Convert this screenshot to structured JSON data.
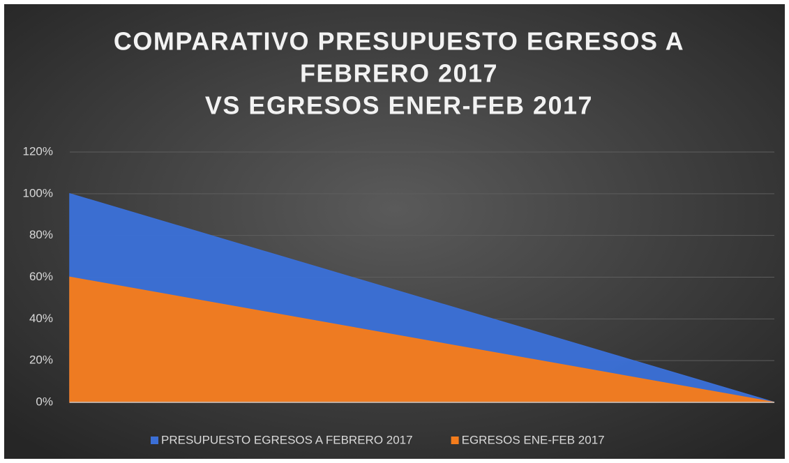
{
  "chart_data": {
    "type": "area",
    "title": [
      "COMPARATIVO PRESUPUESTO EGRESOS A",
      "FEBRERO 2017",
      "VS EGRESOS ENER-FEB 2017"
    ],
    "categories": [
      null,
      null
    ],
    "series": [
      {
        "name": "PRESUPUESTO EGRESOS A FEBRERO 2017",
        "color": "#3b6fd6",
        "values": [
          100,
          0
        ]
      },
      {
        "name": "EGRESOS ENE-FEB 2017",
        "color": "#f47c1c",
        "values": [
          60,
          0
        ]
      }
    ],
    "ylim": [
      0,
      120
    ],
    "yticks": [
      {
        "value": 0,
        "label": "0%"
      },
      {
        "value": 20,
        "label": "20%"
      },
      {
        "value": 40,
        "label": "40%"
      },
      {
        "value": 60,
        "label": "60%"
      },
      {
        "value": 80,
        "label": "80%"
      },
      {
        "value": 100,
        "label": "100%"
      },
      {
        "value": 120,
        "label": "120%"
      }
    ],
    "grid": true,
    "legend": "bottom"
  }
}
